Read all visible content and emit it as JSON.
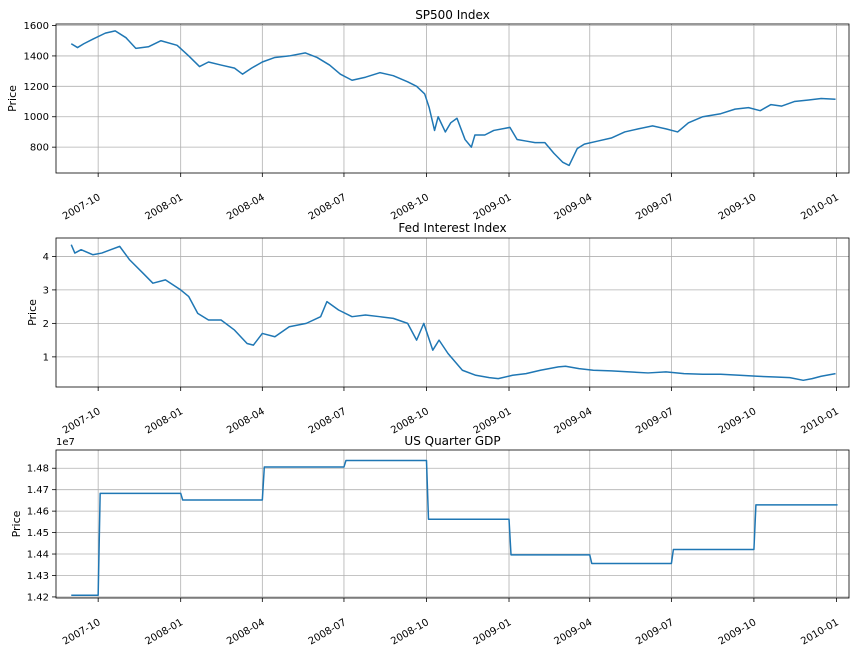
{
  "chart_data": [
    {
      "type": "line",
      "title": "SP500 Index",
      "ylabel": "Price",
      "xlim": [
        "2007-08-15",
        "2010-01-15"
      ],
      "ylim": [
        630,
        1610
      ],
      "xticks": [
        "2007-10-01",
        "2008-01-01",
        "2008-04-01",
        "2008-07-01",
        "2008-10-01",
        "2009-01-01",
        "2009-04-01",
        "2009-07-01",
        "2009-10-01",
        "2010-01-01"
      ],
      "xtick_labels": [
        "2007-10",
        "2008-01",
        "2008-04",
        "2008-07",
        "2008-10",
        "2009-01",
        "2009-04",
        "2009-07",
        "2009-10",
        "2010-01"
      ],
      "yticks": [
        800,
        1000,
        1200,
        1400,
        1600
      ],
      "ytick_labels": [
        "800",
        "1000",
        "1200",
        "1400",
        "1600"
      ],
      "offset_text": "",
      "step": false,
      "grid": true,
      "x": [
        "2007-09-01",
        "2007-09-08",
        "2007-09-15",
        "2007-09-25",
        "2007-10-09",
        "2007-10-20",
        "2007-11-01",
        "2007-11-12",
        "2007-11-26",
        "2007-12-10",
        "2007-12-28",
        "2008-01-10",
        "2008-01-22",
        "2008-02-01",
        "2008-02-15",
        "2008-03-01",
        "2008-03-10",
        "2008-03-20",
        "2008-04-01",
        "2008-04-15",
        "2008-05-01",
        "2008-05-19",
        "2008-06-01",
        "2008-06-15",
        "2008-06-27",
        "2008-07-10",
        "2008-07-25",
        "2008-08-10",
        "2008-08-25",
        "2008-09-10",
        "2008-09-20",
        "2008-09-29",
        "2008-10-04",
        "2008-10-10",
        "2008-10-14",
        "2008-10-22",
        "2008-10-28",
        "2008-11-04",
        "2008-11-13",
        "2008-11-20",
        "2008-11-24",
        "2008-12-05",
        "2008-12-15",
        "2009-01-02",
        "2009-01-10",
        "2009-01-20",
        "2009-01-30",
        "2009-02-10",
        "2009-02-20",
        "2009-03-02",
        "2009-03-09",
        "2009-03-18",
        "2009-03-26",
        "2009-04-10",
        "2009-04-25",
        "2009-05-10",
        "2009-05-25",
        "2009-06-10",
        "2009-06-25",
        "2009-07-08",
        "2009-07-20",
        "2009-08-05",
        "2009-08-25",
        "2009-09-10",
        "2009-09-25",
        "2009-10-08",
        "2009-10-20",
        "2009-11-01",
        "2009-11-15",
        "2009-12-01",
        "2009-12-15",
        "2009-12-31"
      ],
      "y": [
        1480,
        1455,
        1480,
        1510,
        1550,
        1565,
        1520,
        1450,
        1460,
        1500,
        1470,
        1400,
        1330,
        1360,
        1340,
        1320,
        1280,
        1320,
        1360,
        1390,
        1400,
        1420,
        1390,
        1340,
        1280,
        1240,
        1260,
        1290,
        1270,
        1230,
        1200,
        1150,
        1060,
        910,
        1000,
        900,
        960,
        990,
        850,
        800,
        880,
        880,
        910,
        930,
        850,
        840,
        830,
        830,
        760,
        700,
        680,
        790,
        820,
        840,
        860,
        900,
        920,
        940,
        920,
        900,
        960,
        1000,
        1020,
        1050,
        1060,
        1040,
        1080,
        1070,
        1100,
        1110,
        1120,
        1115
      ]
    },
    {
      "type": "line",
      "title": "Fed Interest Index",
      "ylabel": "Price",
      "xlim": [
        "2007-08-15",
        "2010-01-15"
      ],
      "ylim": [
        0.1,
        4.55
      ],
      "xticks": [
        "2007-10-01",
        "2008-01-01",
        "2008-04-01",
        "2008-07-01",
        "2008-10-01",
        "2009-01-01",
        "2009-04-01",
        "2009-07-01",
        "2009-10-01",
        "2010-01-01"
      ],
      "xtick_labels": [
        "2007-10",
        "2008-01",
        "2008-04",
        "2008-07",
        "2008-10",
        "2009-01",
        "2009-04",
        "2009-07",
        "2009-10",
        "2010-01"
      ],
      "yticks": [
        1,
        2,
        3,
        4
      ],
      "ytick_labels": [
        "1",
        "2",
        "3",
        "4"
      ],
      "offset_text": "",
      "step": false,
      "grid": true,
      "x": [
        "2007-09-01",
        "2007-09-05",
        "2007-09-12",
        "2007-09-25",
        "2007-10-05",
        "2007-10-15",
        "2007-10-25",
        "2007-11-05",
        "2007-11-20",
        "2007-12-01",
        "2007-12-15",
        "2008-01-01",
        "2008-01-10",
        "2008-01-20",
        "2008-02-01",
        "2008-02-15",
        "2008-03-01",
        "2008-03-15",
        "2008-03-22",
        "2008-04-01",
        "2008-04-15",
        "2008-05-01",
        "2008-05-20",
        "2008-06-05",
        "2008-06-12",
        "2008-06-25",
        "2008-07-10",
        "2008-07-25",
        "2008-08-10",
        "2008-08-25",
        "2008-09-10",
        "2008-09-20",
        "2008-09-28",
        "2008-10-08",
        "2008-10-15",
        "2008-10-25",
        "2008-11-10",
        "2008-11-25",
        "2008-12-10",
        "2008-12-20",
        "2009-01-05",
        "2009-01-20",
        "2009-02-05",
        "2009-02-25",
        "2009-03-05",
        "2009-03-20",
        "2009-04-05",
        "2009-04-25",
        "2009-05-15",
        "2009-06-05",
        "2009-06-25",
        "2009-07-15",
        "2009-08-05",
        "2009-08-25",
        "2009-09-15",
        "2009-10-05",
        "2009-10-25",
        "2009-11-10",
        "2009-11-25",
        "2009-12-05",
        "2009-12-15",
        "2009-12-31"
      ],
      "y": [
        4.35,
        4.1,
        4.2,
        4.05,
        4.1,
        4.2,
        4.3,
        3.9,
        3.5,
        3.2,
        3.3,
        3.0,
        2.8,
        2.3,
        2.1,
        2.1,
        1.8,
        1.4,
        1.35,
        1.7,
        1.6,
        1.9,
        2.0,
        2.2,
        2.65,
        2.4,
        2.2,
        2.25,
        2.2,
        2.15,
        2.0,
        1.5,
        2.0,
        1.2,
        1.5,
        1.1,
        0.6,
        0.45,
        0.38,
        0.35,
        0.45,
        0.5,
        0.6,
        0.7,
        0.72,
        0.65,
        0.6,
        0.58,
        0.55,
        0.52,
        0.55,
        0.5,
        0.48,
        0.48,
        0.45,
        0.42,
        0.4,
        0.38,
        0.3,
        0.35,
        0.42,
        0.5
      ]
    },
    {
      "type": "line",
      "title": "US Quarter GDP",
      "ylabel": "Price",
      "xlim": [
        "2007-08-15",
        "2010-01-15"
      ],
      "ylim": [
        14195000,
        14885000
      ],
      "xticks": [
        "2007-10-01",
        "2008-01-01",
        "2008-04-01",
        "2008-07-01",
        "2008-10-01",
        "2009-01-01",
        "2009-04-01",
        "2009-07-01",
        "2009-10-01",
        "2010-01-01"
      ],
      "xtick_labels": [
        "2007-10",
        "2008-01",
        "2008-04",
        "2008-07",
        "2008-10",
        "2009-01",
        "2009-04",
        "2009-07",
        "2009-10",
        "2010-01"
      ],
      "yticks": [
        14200000,
        14300000,
        14400000,
        14500000,
        14600000,
        14700000,
        14800000
      ],
      "ytick_labels": [
        "1.42",
        "1.43",
        "1.44",
        "1.45",
        "1.46",
        "1.47",
        "1.48"
      ],
      "offset_text": "1e7",
      "step": true,
      "grid": true,
      "x": [
        "2007-09-01",
        "2007-10-01",
        "2008-01-01",
        "2008-04-01",
        "2008-07-01",
        "2008-10-01",
        "2009-01-01",
        "2009-04-01",
        "2009-07-01",
        "2009-10-01",
        "2009-12-31"
      ],
      "y": [
        14208000,
        14683000,
        14652000,
        14806000,
        14836000,
        14562000,
        14396000,
        14356000,
        14421000,
        14629000,
        14629000
      ]
    }
  ]
}
